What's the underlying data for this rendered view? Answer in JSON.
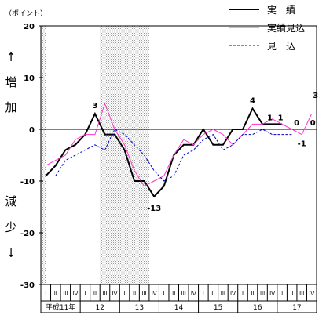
{
  "chart_data": {
    "type": "line",
    "ylabel_unit": "（ポイント）",
    "ylim": [
      -30,
      20
    ],
    "yticks": [
      20,
      10,
      0,
      -10,
      -20,
      -30
    ],
    "side_label_up": [
      "↑",
      "増",
      "加"
    ],
    "side_label_down": [
      "減",
      "少",
      "↓"
    ],
    "quarters": [
      "I",
      "II",
      "III",
      "IV",
      "I",
      "II",
      "III",
      "IV",
      "I",
      "II",
      "III",
      "IV",
      "I",
      "II",
      "III",
      "IV",
      "I",
      "II",
      "III",
      "IV",
      "I",
      "II",
      "III",
      "IV",
      "I",
      "II",
      "III",
      "IV"
    ],
    "year_labels": [
      {
        "label": "平成11年",
        "start": 0,
        "end": 3
      },
      {
        "label": "12",
        "start": 4,
        "end": 7
      },
      {
        "label": "13",
        "start": 8,
        "end": 11
      },
      {
        "label": "14",
        "start": 12,
        "end": 15
      },
      {
        "label": "15",
        "start": 16,
        "end": 19
      },
      {
        "label": "16",
        "start": 20,
        "end": 23
      },
      {
        "label": "17",
        "start": 24,
        "end": 27
      }
    ],
    "shaded_ranges": [
      [
        0,
        0.5
      ],
      [
        6,
        11
      ]
    ],
    "series": [
      {
        "name": "実　績",
        "color": "#000000",
        "style": "solid-thick",
        "values": [
          -9,
          -7,
          -4,
          -3,
          -1,
          3,
          -1,
          -1,
          -4,
          -10,
          -10,
          -13,
          -11,
          -5,
          -3,
          -3,
          0,
          -3,
          -3,
          0,
          0,
          4,
          1,
          1,
          1,
          null,
          null,
          null
        ]
      },
      {
        "name": "実績見込",
        "color": "#ff33cc",
        "style": "solid",
        "values": [
          -7,
          -6,
          -5,
          -2,
          -1,
          -1,
          5,
          0,
          -3,
          -8,
          -11,
          -10,
          -9,
          -5,
          -2,
          -3,
          -1,
          0,
          -1,
          -3,
          -1,
          1,
          1,
          2,
          1,
          0,
          -1,
          3
        ]
      },
      {
        "name": "見　込",
        "color": "#0000cc",
        "style": "dashed",
        "values": [
          null,
          -9,
          -6,
          -5,
          -4,
          -3,
          -4,
          0,
          -1,
          -3,
          -5,
          -8,
          -10,
          -9,
          -5,
          -4,
          -2,
          -1,
          -4,
          -3,
          -1,
          -1,
          0,
          -1,
          -1,
          -1,
          null,
          null
        ]
      }
    ],
    "annotations": [
      {
        "text": "3",
        "index": 5,
        "value": 3
      },
      {
        "text": "-13",
        "index": 11,
        "value": -13
      },
      {
        "text": "4",
        "index": 21,
        "value": 4
      },
      {
        "text": "1",
        "index": 23,
        "value": 1
      },
      {
        "text": "1",
        "index": 24,
        "value": 1
      },
      {
        "text": "0",
        "index": 25,
        "value": 0
      },
      {
        "text": "0",
        "index": 26,
        "value": 0
      },
      {
        "text": "-1",
        "index": 26,
        "value": -1
      },
      {
        "text": "3",
        "index": 27,
        "value": 3
      }
    ],
    "legend_position": "top-right"
  }
}
